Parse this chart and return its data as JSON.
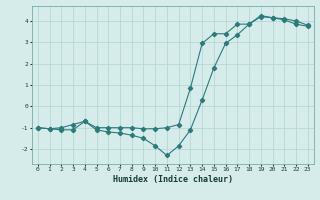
{
  "line1_x": [
    0,
    1,
    2,
    3,
    4,
    5,
    6,
    7,
    8,
    9,
    10,
    11,
    12,
    13,
    14,
    15,
    16,
    17,
    18,
    19,
    20,
    21,
    22,
    23
  ],
  "line1_y": [
    -1.0,
    -1.05,
    -1.0,
    -0.85,
    -0.7,
    -1.0,
    -1.0,
    -1.0,
    -1.0,
    -1.05,
    -1.05,
    -1.0,
    -0.85,
    0.85,
    2.95,
    3.4,
    3.4,
    3.85,
    3.85,
    4.2,
    4.15,
    4.1,
    4.0,
    3.8
  ],
  "line2_x": [
    0,
    1,
    2,
    3,
    4,
    5,
    6,
    7,
    8,
    9,
    10,
    11,
    12,
    13,
    14,
    15,
    16,
    17,
    18,
    19,
    20,
    21,
    22,
    23
  ],
  "line2_y": [
    -1.0,
    -1.05,
    -1.1,
    -1.1,
    -0.7,
    -1.1,
    -1.2,
    -1.25,
    -1.35,
    -1.5,
    -1.85,
    -2.3,
    -1.85,
    -1.1,
    0.3,
    1.8,
    2.95,
    3.35,
    3.85,
    4.25,
    4.15,
    4.05,
    3.85,
    3.75
  ],
  "bg_color": "#d5ecea",
  "line_color": "#2d7a7a",
  "grid_color": "#b5d8d5",
  "xlabel": "Humidex (Indice chaleur)",
  "ylim": [
    -2.7,
    4.7
  ],
  "xlim": [
    -0.5,
    23.5
  ],
  "yticks": [
    -2,
    -1,
    0,
    1,
    2,
    3,
    4
  ],
  "xticks": [
    0,
    1,
    2,
    3,
    4,
    5,
    6,
    7,
    8,
    9,
    10,
    11,
    12,
    13,
    14,
    15,
    16,
    17,
    18,
    19,
    20,
    21,
    22,
    23
  ],
  "tick_fontsize": 4.5,
  "xlabel_fontsize": 6.0,
  "marker_style": "D",
  "marker_size": 2.2,
  "linewidth": 0.8
}
